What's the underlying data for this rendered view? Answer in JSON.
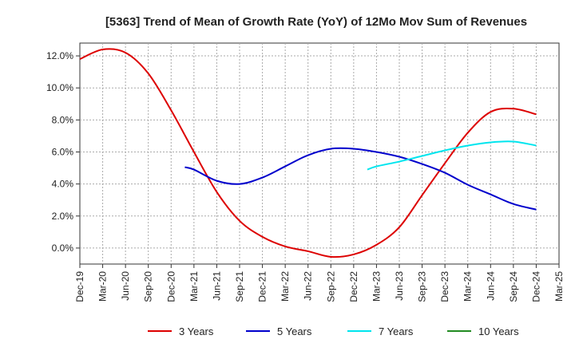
{
  "chart_data": {
    "type": "line",
    "title": "[5363]  Trend of Mean of Growth Rate (YoY) of 12Mo Mov Sum of Revenues",
    "xlabel": "",
    "ylabel": "",
    "ylim": [
      -1.0,
      12.8
    ],
    "yticks": [
      0.0,
      2.0,
      4.0,
      6.0,
      8.0,
      10.0,
      12.0
    ],
    "ytick_labels": [
      "0.0%",
      "2.0%",
      "4.0%",
      "6.0%",
      "8.0%",
      "10.0%",
      "12.0%"
    ],
    "x_categories": [
      "Dec-19",
      "Mar-20",
      "Jun-20",
      "Sep-20",
      "Dec-20",
      "Mar-21",
      "Jun-21",
      "Sep-21",
      "Dec-21",
      "Mar-22",
      "Jun-22",
      "Sep-22",
      "Dec-22",
      "Mar-23",
      "Jun-23",
      "Sep-23",
      "Dec-23",
      "Mar-24",
      "Jun-24",
      "Sep-24",
      "Dec-24",
      "Mar-25"
    ],
    "grid": true,
    "legend_position": "bottom",
    "series": [
      {
        "name": "3 Years",
        "color": "#dd0000",
        "x": [
          0,
          1,
          2,
          3,
          4,
          5,
          6,
          7,
          8,
          9,
          10,
          11,
          12,
          13,
          14,
          15,
          16,
          17,
          18,
          19,
          20
        ],
        "values": [
          11.8,
          12.4,
          12.2,
          10.9,
          8.6,
          6.0,
          3.5,
          1.7,
          0.7,
          0.1,
          -0.2,
          -0.55,
          -0.4,
          0.2,
          1.3,
          3.3,
          5.3,
          7.2,
          8.5,
          8.7,
          8.35
        ]
      },
      {
        "name": "5 Years",
        "color": "#0000cc",
        "x": [
          4.6,
          5,
          6,
          7,
          8,
          9,
          10,
          11,
          12,
          13,
          14,
          15,
          16,
          17,
          18,
          19,
          20
        ],
        "values": [
          5.05,
          4.9,
          4.2,
          4.0,
          4.4,
          5.1,
          5.8,
          6.2,
          6.2,
          6.0,
          5.7,
          5.25,
          4.7,
          3.95,
          3.35,
          2.75,
          2.4
        ]
      },
      {
        "name": "7 Years",
        "color": "#00e5ee",
        "x": [
          12.6,
          13,
          14,
          15,
          16,
          17,
          18,
          19,
          20
        ],
        "values": [
          4.9,
          5.1,
          5.4,
          5.75,
          6.1,
          6.4,
          6.6,
          6.65,
          6.4
        ]
      },
      {
        "name": "10 Years",
        "color": "#228b22",
        "x": [],
        "values": []
      }
    ]
  }
}
